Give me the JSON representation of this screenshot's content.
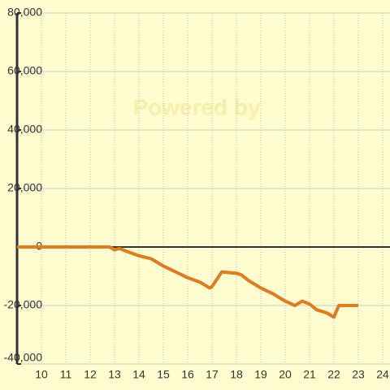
{
  "chart_data": {
    "type": "line",
    "watermark": "Powered by",
    "x": [
      9,
      12.8,
      13.0,
      13.2,
      13.5,
      14.0,
      14.5,
      15.0,
      15.5,
      16.0,
      16.5,
      16.9,
      17.0,
      17.4,
      18.0,
      18.2,
      18.5,
      19.0,
      19.5,
      20.0,
      20.4,
      20.7,
      21.0,
      21.3,
      21.7,
      22.0,
      22.2,
      23.0
    ],
    "series": [
      {
        "color": "#e07b20",
        "values": [
          0,
          0,
          -1000,
          -500,
          -1500,
          -3000,
          -4000,
          -6500,
          -8500,
          -10500,
          -12000,
          -14000,
          -13500,
          -8500,
          -9000,
          -9500,
          -11500,
          -14000,
          -16000,
          -18500,
          -20000,
          -18500,
          -19500,
          -21500,
          -22500,
          -24000,
          -20000,
          -20000
        ]
      }
    ],
    "xlim": [
      9,
      24.3
    ],
    "xticks": [
      10,
      11,
      12,
      13,
      14,
      15,
      16,
      17,
      18,
      19,
      20,
      21,
      22,
      23,
      24
    ],
    "ylim": [
      -40000,
      80000
    ],
    "yticks": [
      {
        "value": -40000,
        "label": "-40,000"
      },
      {
        "value": -20000,
        "label": "-20,000"
      },
      {
        "value": 0,
        "label": "0"
      },
      {
        "value": 20000,
        "label": "20,000"
      },
      {
        "value": 40000,
        "label": "40,000"
      },
      {
        "value": 60000,
        "label": "60,000"
      },
      {
        "value": 80000,
        "label": "80,000"
      }
    ],
    "grid": true
  }
}
